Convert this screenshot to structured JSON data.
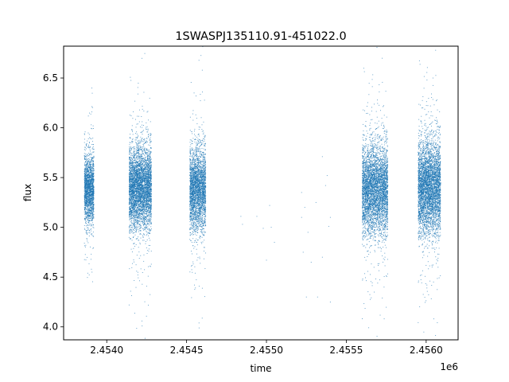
{
  "chart_data": {
    "type": "scatter",
    "title": "1SWASPJ135110.91-451022.0",
    "xlabel": "time",
    "ylabel": "flux",
    "x_offset_label": "1e6",
    "xlim": [
      2.45373,
      2.4562
    ],
    "ylim": [
      3.87,
      6.82
    ],
    "x_ticks": [
      2.454,
      2.4545,
      2.455,
      2.4555,
      2.456
    ],
    "x_tick_labels": [
      "2.4540",
      "2.4545",
      "2.4550",
      "2.4555",
      "2.4560"
    ],
    "y_ticks": [
      4.0,
      4.5,
      5.0,
      5.5,
      6.0,
      6.5
    ],
    "y_tick_labels": [
      "4.0",
      "4.5",
      "5.0",
      "5.5",
      "6.0",
      "6.5"
    ],
    "grid": false,
    "legend": "none",
    "marker_color": "#1f77b4",
    "observation_seasons": [
      {
        "x_start": 2.45386,
        "x_end": 2.45392,
        "flux_center": 5.38,
        "flux_spread": 0.17,
        "density": 2000
      },
      {
        "x_start": 2.45414,
        "x_end": 2.45428,
        "flux_center": 5.4,
        "flux_spread": 0.2,
        "density": 4500
      },
      {
        "x_start": 2.45452,
        "x_end": 2.45462,
        "flux_center": 5.38,
        "flux_spread": 0.2,
        "density": 3000
      },
      {
        "x_start": 2.4556,
        "x_end": 2.45576,
        "flux_center": 5.38,
        "flux_spread": 0.22,
        "density": 4500
      },
      {
        "x_start": 2.45595,
        "x_end": 2.45609,
        "flux_center": 5.4,
        "flux_spread": 0.23,
        "density": 4500
      }
    ],
    "sparse_points": [
      [
        2.45484,
        5.11
      ],
      [
        2.45485,
        5.03
      ],
      [
        2.45494,
        5.11
      ],
      [
        2.45498,
        4.99
      ],
      [
        2.455,
        4.67
      ],
      [
        2.45502,
        5.22
      ],
      [
        2.45503,
        5.0
      ],
      [
        2.45505,
        4.85
      ],
      [
        2.45522,
        5.35
      ],
      [
        2.45522,
        5.1
      ],
      [
        2.45523,
        4.75
      ],
      [
        2.45524,
        5.2
      ],
      [
        2.45525,
        4.3
      ],
      [
        2.45528,
        4.65
      ],
      [
        2.45532,
        4.3
      ],
      [
        2.45535,
        5.71
      ],
      [
        2.45537,
        5.42
      ],
      [
        2.45538,
        5.52
      ],
      [
        2.45539,
        5.01
      ],
      [
        2.4554,
        5.1
      ],
      [
        2.4554,
        4.25
      ],
      [
        2.45535,
        4.7
      ],
      [
        2.45531,
        5.25
      ],
      [
        2.45526,
        4.95
      ]
    ]
  }
}
